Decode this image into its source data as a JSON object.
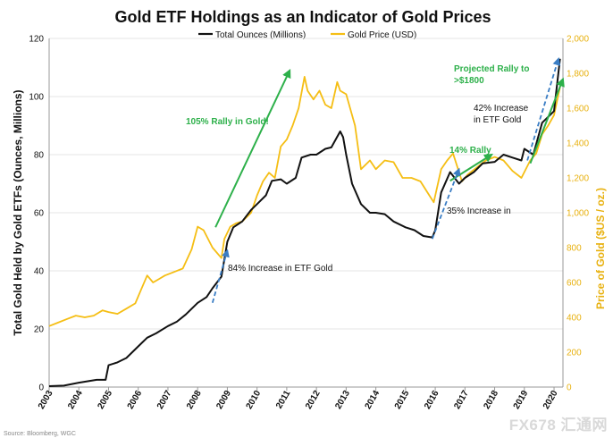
{
  "chart_data": {
    "type": "line",
    "title": "Gold ETF Holdings as an Indicator of Gold Prices",
    "ylabel_left": "Total Gold Held by Gold ETFs (Ounces, Millions)",
    "ylabel_right": "Price of Gold ($US / oz.)",
    "ylim_left": [
      0,
      120
    ],
    "ylim_right": [
      0,
      2000
    ],
    "yticks_left": [
      "0",
      "20",
      "40",
      "60",
      "80",
      "100",
      "120"
    ],
    "yticks_right": [
      "0",
      "200",
      "400",
      "600",
      "800",
      "1,000",
      "1,200",
      "1,400",
      "1,600",
      "1,800",
      "2,000"
    ],
    "x_categories": [
      "2003",
      "2004",
      "2005",
      "2006",
      "2007",
      "2008",
      "2009",
      "2010",
      "2011",
      "2012",
      "2013",
      "2014",
      "2015",
      "2016",
      "2017",
      "2018",
      "2019",
      "2020"
    ],
    "xlim": [
      2003,
      2020.3
    ],
    "legend": {
      "position": "top-center",
      "items": [
        "Total Ounces (Millions)",
        "Gold Price (USD)"
      ]
    },
    "series": [
      {
        "name": "Total Ounces (Millions)",
        "axis": "left",
        "color": "#111111",
        "x": [
          2003.0,
          2003.5,
          2004.0,
          2004.3,
          2004.6,
          2004.9,
          2005.0,
          2005.3,
          2005.6,
          2006.0,
          2006.3,
          2006.6,
          2007.0,
          2007.3,
          2007.6,
          2008.0,
          2008.3,
          2008.5,
          2008.8,
          2009.0,
          2009.2,
          2009.5,
          2009.8,
          2010.0,
          2010.3,
          2010.5,
          2010.8,
          2011.0,
          2011.3,
          2011.5,
          2011.8,
          2012.0,
          2012.3,
          2012.5,
          2012.8,
          2012.9,
          2013.0,
          2013.2,
          2013.5,
          2013.8,
          2014.0,
          2014.3,
          2014.6,
          2015.0,
          2015.3,
          2015.6,
          2015.9,
          2016.0,
          2016.2,
          2016.5,
          2016.8,
          2017.0,
          2017.3,
          2017.6,
          2018.0,
          2018.3,
          2018.6,
          2018.9,
          2019.0,
          2019.3,
          2019.6,
          2019.8,
          2020.0,
          2020.2
        ],
        "values": [
          0.3,
          0.5,
          1.5,
          2.0,
          2.5,
          2.5,
          7.5,
          8.5,
          10.0,
          14.0,
          17.0,
          18.5,
          21.0,
          22.5,
          25.0,
          29.0,
          31.0,
          34.0,
          38.0,
          50.0,
          55.0,
          57.0,
          61.0,
          63.0,
          66.0,
          71.0,
          71.5,
          70.0,
          72.0,
          79.0,
          80.0,
          80.0,
          82.0,
          82.5,
          88.0,
          86.0,
          80.0,
          70.0,
          63.0,
          60.0,
          60.0,
          59.5,
          57.0,
          55.0,
          54.0,
          52.0,
          51.5,
          54.0,
          67.0,
          74.0,
          70.0,
          72.0,
          74.0,
          77.0,
          77.5,
          80.0,
          79.0,
          78.0,
          82.0,
          80.0,
          91.0,
          93.0,
          95.0,
          113.0
        ]
      },
      {
        "name": "Gold Price (USD)",
        "axis": "right",
        "color": "#f5be14",
        "x": [
          2003.0,
          2003.3,
          2003.6,
          2003.9,
          2004.2,
          2004.5,
          2004.8,
          2005.0,
          2005.3,
          2005.6,
          2005.9,
          2006.1,
          2006.3,
          2006.5,
          2006.7,
          2006.9,
          2007.2,
          2007.5,
          2007.8,
          2008.0,
          2008.2,
          2008.5,
          2008.8,
          2008.9,
          2009.1,
          2009.3,
          2009.5,
          2009.8,
          2010.0,
          2010.2,
          2010.4,
          2010.6,
          2010.8,
          2011.0,
          2011.2,
          2011.4,
          2011.6,
          2011.7,
          2011.9,
          2012.1,
          2012.3,
          2012.5,
          2012.7,
          2012.8,
          2013.0,
          2013.3,
          2013.5,
          2013.8,
          2014.0,
          2014.3,
          2014.6,
          2014.9,
          2015.2,
          2015.5,
          2015.8,
          2015.95,
          2016.2,
          2016.4,
          2016.6,
          2016.9,
          2017.1,
          2017.4,
          2017.7,
          2018.0,
          2018.3,
          2018.6,
          2018.9,
          2019.2,
          2019.4,
          2019.6,
          2019.8,
          2020.0,
          2020.2
        ],
        "values": [
          350,
          370,
          390,
          410,
          400,
          410,
          440,
          430,
          420,
          450,
          480,
          560,
          640,
          600,
          620,
          640,
          660,
          680,
          790,
          920,
          900,
          800,
          740,
          850,
          920,
          940,
          950,
          1000,
          1100,
          1180,
          1230,
          1200,
          1380,
          1420,
          1500,
          1600,
          1780,
          1700,
          1650,
          1700,
          1620,
          1600,
          1750,
          1700,
          1680,
          1500,
          1250,
          1300,
          1250,
          1300,
          1290,
          1200,
          1200,
          1180,
          1100,
          1060,
          1250,
          1300,
          1340,
          1180,
          1220,
          1260,
          1300,
          1320,
          1300,
          1240,
          1200,
          1300,
          1340,
          1450,
          1500,
          1560,
          1720
        ]
      }
    ],
    "annotations": [
      {
        "text": "105% Rally in Gold!",
        "color": "#2db04a"
      },
      {
        "text": "84% Increase in ETF Gold",
        "color": "#111111"
      },
      {
        "text": "14% Rally",
        "color": "#2db04a"
      },
      {
        "text": "35% Increase in",
        "color": "#111111"
      },
      {
        "text": "Projected Rally to",
        "color": "#2db04a"
      },
      {
        "text": ">$1800",
        "color": "#2db04a"
      },
      {
        "text": "42% Increase",
        "color": "#111111"
      },
      {
        "text": "in ETF Gold",
        "color": "#111111"
      }
    ],
    "trend_arrows": [
      {
        "kind": "solid-green",
        "from": [
          2008.6,
          55
        ],
        "to": [
          2011.1,
          109
        ]
      },
      {
        "kind": "dashed-blue",
        "from": [
          2008.5,
          29
        ],
        "to": [
          2009.0,
          47
        ]
      },
      {
        "kind": "solid-green",
        "from": [
          2016.5,
          71
        ],
        "to": [
          2017.9,
          80
        ]
      },
      {
        "kind": "dashed-blue",
        "from": [
          2015.9,
          51
        ],
        "to": [
          2016.8,
          75
        ]
      },
      {
        "kind": "solid-green",
        "from": [
          2019.2,
          77
        ],
        "to": [
          2020.3,
          106
        ]
      },
      {
        "kind": "dashed-blue",
        "from": [
          2019.1,
          78
        ],
        "to": [
          2020.15,
          113
        ]
      }
    ],
    "source": "Source: Bloomberg, WGC"
  },
  "watermark": "FX678 汇通网",
  "colors": {
    "ounces": "#111111",
    "price": "#f5be14",
    "rally": "#2db04a",
    "trend": "#3a7dc4",
    "right_axis": "#e8b10f"
  }
}
